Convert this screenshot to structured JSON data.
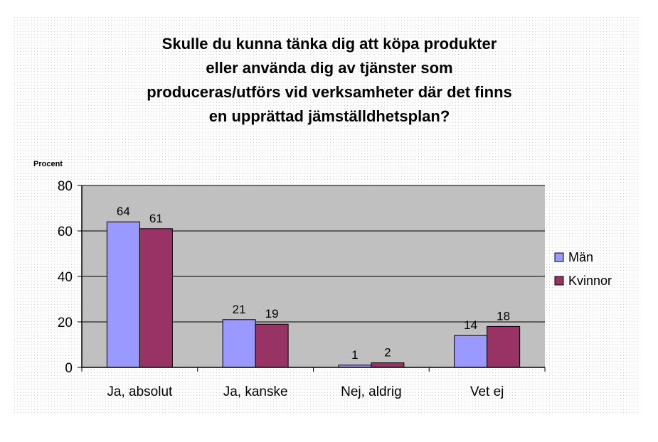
{
  "chart_data": {
    "type": "bar",
    "title_lines": [
      "Skulle du kunna tänka dig att köpa produkter",
      "eller använda dig av tjänster som",
      "produceras/utförs vid verksamheter där det finns",
      "en upprättad jämställdhetsplan?"
    ],
    "ylabel": "Procent",
    "xlabel": "",
    "categories": [
      "Ja, absolut",
      "Ja, kanske",
      "Nej, aldrig",
      "Vet ej"
    ],
    "series": [
      {
        "name": "Män",
        "values": [
          64,
          21,
          1,
          14
        ],
        "color": "#9999ff"
      },
      {
        "name": "Kvinnor",
        "values": [
          61,
          19,
          2,
          18
        ],
        "color": "#993366"
      }
    ],
    "ylim": [
      0,
      80
    ],
    "yticks": [
      0,
      20,
      40,
      60,
      80
    ],
    "grid": true,
    "legend_position": "right",
    "plot_background": "#c0c0c0"
  }
}
